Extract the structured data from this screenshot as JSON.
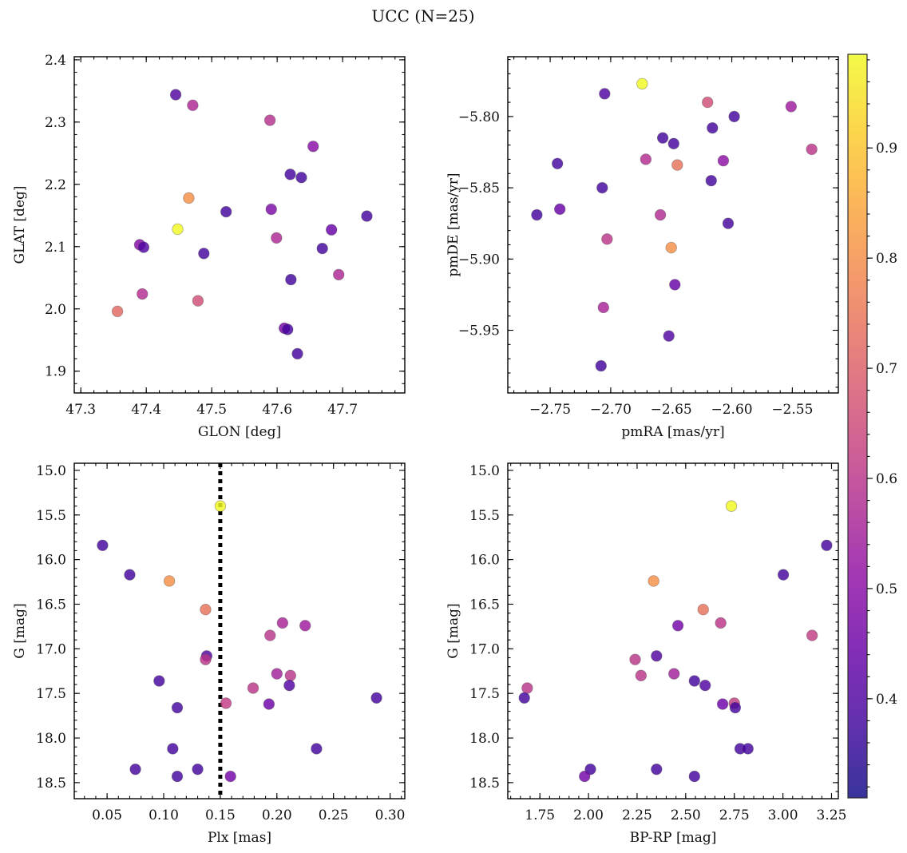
{
  "figure": {
    "title": "UCC (N=25)"
  },
  "colorbar": {
    "min": 0.31,
    "max": 0.985,
    "ticks": [
      0.4,
      0.5,
      0.6,
      0.7,
      0.8,
      0.9
    ],
    "tick_labels": [
      "0.4",
      "0.5",
      "0.6",
      "0.7",
      "0.8",
      "0.9"
    ],
    "colormap": "plasma"
  },
  "chart_data": [
    {
      "type": "scatter",
      "name": "sky",
      "xlabel": "GLON [deg]",
      "ylabel": "GLAT [deg]",
      "xlim": [
        47.29,
        47.795
      ],
      "ylim": [
        1.865,
        2.405
      ],
      "xticks": [
        47.3,
        47.4,
        47.5,
        47.6,
        47.7
      ],
      "xtick_labels": [
        "47.3",
        "47.4",
        "47.5",
        "47.6",
        "47.7"
      ],
      "yticks": [
        1.9,
        2.0,
        2.1,
        2.2,
        2.3,
        2.4
      ],
      "ytick_labels": [
        "1.9",
        "2.0",
        "2.1",
        "2.2",
        "2.3",
        "2.4"
      ],
      "x": [
        47.445,
        47.471,
        47.589,
        47.655,
        47.62,
        47.637,
        47.465,
        47.522,
        47.737,
        47.591,
        47.448,
        47.39,
        47.396,
        47.599,
        47.683,
        47.488,
        47.669,
        47.694,
        47.621,
        47.394,
        47.479,
        47.356,
        47.611,
        47.616,
        47.631
      ],
      "y": [
        2.344,
        2.327,
        2.303,
        2.261,
        2.216,
        2.211,
        2.178,
        2.156,
        2.149,
        2.16,
        2.128,
        2.103,
        2.099,
        2.114,
        2.127,
        2.089,
        2.097,
        2.055,
        2.047,
        2.024,
        2.013,
        1.996,
        1.969,
        1.967,
        1.928
      ],
      "c": [
        0.4,
        0.57,
        0.59,
        0.5,
        0.38,
        0.38,
        0.8,
        0.38,
        0.38,
        0.48,
        0.985,
        0.49,
        0.4,
        0.57,
        0.44,
        0.38,
        0.38,
        0.57,
        0.38,
        0.58,
        0.66,
        0.72,
        0.46,
        0.38,
        0.38
      ]
    },
    {
      "type": "scatter",
      "name": "proper-motion",
      "xlabel": "pmRA [mas/yr]",
      "ylabel": "pmDE [mas/yr]",
      "xlim": [
        -2.785,
        -2.512
      ],
      "ylim": [
        -5.994,
        -5.758
      ],
      "xticks": [
        -2.75,
        -2.7,
        -2.65,
        -2.6,
        -2.55
      ],
      "xtick_labels": [
        "−2.75",
        "−2.70",
        "−2.65",
        "−2.60",
        "−2.55"
      ],
      "yticks": [
        -5.95,
        -5.9,
        -5.85,
        -5.8
      ],
      "ytick_labels": [
        "−5.95",
        "−5.90",
        "−5.85",
        "−5.80"
      ],
      "x": [
        -2.674,
        -2.705,
        -2.62,
        -2.551,
        -2.598,
        -2.616,
        -2.657,
        -2.648,
        -2.534,
        -2.744,
        -2.671,
        -2.645,
        -2.607,
        -2.617,
        -2.707,
        -2.761,
        -2.742,
        -2.659,
        -2.603,
        -2.703,
        -2.65,
        -2.647,
        -2.706,
        -2.652,
        -2.708
      ],
      "y": [
        -5.777,
        -5.784,
        -5.79,
        -5.793,
        -5.8,
        -5.808,
        -5.815,
        -5.819,
        -5.823,
        -5.833,
        -5.83,
        -5.834,
        -5.831,
        -5.845,
        -5.85,
        -5.869,
        -5.865,
        -5.869,
        -5.875,
        -5.886,
        -5.892,
        -5.918,
        -5.934,
        -5.954,
        -5.975
      ],
      "c": [
        0.985,
        0.4,
        0.66,
        0.54,
        0.38,
        0.38,
        0.38,
        0.38,
        0.6,
        0.38,
        0.58,
        0.74,
        0.51,
        0.38,
        0.38,
        0.38,
        0.44,
        0.58,
        0.38,
        0.6,
        0.8,
        0.44,
        0.56,
        0.4,
        0.38
      ]
    },
    {
      "type": "scatter",
      "name": "parallax-magnitude",
      "xlabel": "Plx [mas]",
      "ylabel": "G [mag]",
      "xlim": [
        0.021,
        0.313
      ],
      "ylim": [
        18.68,
        14.92
      ],
      "y_inverted": true,
      "vline": {
        "x": 0.15,
        "style": "dotted"
      },
      "xticks": [
        0.05,
        0.1,
        0.15,
        0.2,
        0.25,
        0.3
      ],
      "xtick_labels": [
        "0.05",
        "0.10",
        "0.15",
        "0.20",
        "0.25",
        "0.30"
      ],
      "yticks": [
        15.0,
        15.5,
        16.0,
        16.5,
        17.0,
        17.5,
        18.0,
        18.5
      ],
      "ytick_labels": [
        "15.0",
        "15.5",
        "16.0",
        "16.5",
        "17.0",
        "17.5",
        "18.0",
        "18.5"
      ],
      "x": [
        0.15,
        0.046,
        0.07,
        0.105,
        0.137,
        0.205,
        0.225,
        0.194,
        0.138,
        0.137,
        0.2,
        0.212,
        0.096,
        0.211,
        0.179,
        0.288,
        0.155,
        0.193,
        0.112,
        0.108,
        0.235,
        0.075,
        0.13,
        0.112,
        0.159
      ],
      "y": [
        15.4,
        15.84,
        16.17,
        16.24,
        16.56,
        16.71,
        16.74,
        16.85,
        17.08,
        17.12,
        17.28,
        17.3,
        17.36,
        17.41,
        17.44,
        17.55,
        17.61,
        17.62,
        17.66,
        18.12,
        18.12,
        18.35,
        18.35,
        18.43,
        18.43
      ],
      "c": [
        0.985,
        0.38,
        0.38,
        0.8,
        0.74,
        0.56,
        0.54,
        0.6,
        0.4,
        0.6,
        0.55,
        0.6,
        0.38,
        0.4,
        0.6,
        0.38,
        0.62,
        0.45,
        0.38,
        0.38,
        0.38,
        0.38,
        0.38,
        0.38,
        0.46
      ]
    },
    {
      "type": "scatter",
      "name": "color-magnitude",
      "xlabel": "BP-RP [mag]",
      "ylabel": "G [mag]",
      "xlim": [
        1.585,
        3.285
      ],
      "ylim": [
        18.68,
        14.92
      ],
      "y_inverted": true,
      "xticks": [
        1.75,
        2.0,
        2.25,
        2.5,
        2.75,
        3.0,
        3.25
      ],
      "xtick_labels": [
        "1.75",
        "2.00",
        "2.25",
        "2.50",
        "2.75",
        "3.00",
        "3.25"
      ],
      "yticks": [
        15.0,
        15.5,
        16.0,
        16.5,
        17.0,
        17.5,
        18.0,
        18.5
      ],
      "ytick_labels": [
        "15.0",
        "15.5",
        "16.0",
        "16.5",
        "17.0",
        "17.5",
        "18.0",
        "18.5"
      ],
      "x": [
        2.735,
        3.225,
        3.002,
        2.335,
        2.59,
        2.68,
        2.46,
        3.15,
        2.35,
        2.24,
        2.44,
        2.27,
        2.545,
        2.6,
        1.685,
        1.67,
        2.75,
        2.69,
        2.755,
        2.78,
        2.82,
        2.01,
        2.35,
        1.98,
        2.545
      ],
      "y": [
        15.4,
        15.84,
        16.17,
        16.24,
        16.56,
        16.71,
        16.74,
        16.85,
        17.08,
        17.12,
        17.28,
        17.3,
        17.36,
        17.41,
        17.44,
        17.55,
        17.61,
        17.62,
        17.66,
        18.12,
        18.12,
        18.35,
        18.35,
        18.43,
        18.43
      ],
      "c": [
        0.985,
        0.38,
        0.38,
        0.8,
        0.74,
        0.6,
        0.46,
        0.62,
        0.4,
        0.6,
        0.55,
        0.6,
        0.38,
        0.4,
        0.6,
        0.38,
        0.62,
        0.45,
        0.38,
        0.38,
        0.38,
        0.38,
        0.38,
        0.46,
        0.38
      ]
    }
  ]
}
